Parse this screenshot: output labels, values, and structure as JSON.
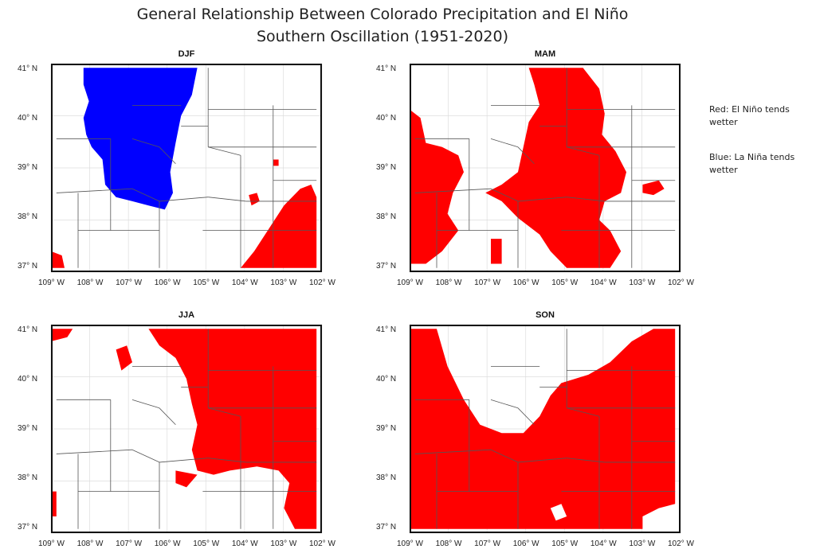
{
  "title_line1": "General Relationship Between Colorado Precipitation and El Niño",
  "title_line2": "Southern Oscillation (1951-2020)",
  "legend": {
    "red_text": "Red: El Niño tends wetter",
    "blue_text": "Blue: La Niña tends wetter"
  },
  "colors": {
    "el_nino": "#ff0000",
    "la_nina": "#0000ff"
  },
  "lat_labels": [
    "41° N",
    "40° N",
    "39° N",
    "38° N",
    "37° N"
  ],
  "lon_labels": [
    "109° W",
    "108° W",
    "107° W",
    "106° W",
    "105° W",
    "104° W",
    "103° W",
    "102° W"
  ],
  "panels": [
    {
      "label": "DJF"
    },
    {
      "label": "MAM"
    },
    {
      "label": "JJA"
    },
    {
      "label": "SON"
    }
  ]
}
